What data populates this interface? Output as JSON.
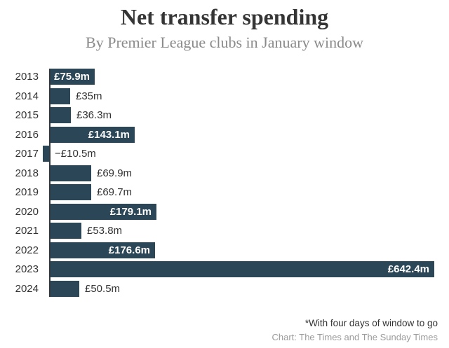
{
  "header": {
    "title": "Net transfer spending",
    "subtitle": "By Premier League clubs in January window"
  },
  "footer": {
    "footnote": "*With four days of window to go",
    "source": "Chart: The Times and The Sunday Times"
  },
  "colors": {
    "bar": "#2b4656",
    "axis": "#323a40",
    "label_inside": "#ffffff",
    "label_outside": "#333333",
    "title": "#353535",
    "subtitle": "#8a8a8a",
    "source": "#9b9b9b"
  },
  "chart_data": {
    "type": "bar",
    "orientation": "horizontal",
    "title": "Net transfer spending",
    "subtitle": "By Premier League clubs in January window",
    "xlabel": "",
    "ylabel": "",
    "categories": [
      "2013",
      "2014",
      "2015",
      "2016",
      "2017",
      "2018",
      "2019",
      "2020",
      "2021",
      "2022",
      "2023",
      "2024"
    ],
    "values": [
      75.9,
      35,
      36.3,
      143.1,
      -10.5,
      69.9,
      69.7,
      179.1,
      53.8,
      176.6,
      642.4,
      50.5
    ],
    "value_labels": [
      "£75.9m",
      "£35m",
      "£36.3m",
      "£143.1m",
      "−£10.5m",
      "£69.9m",
      "£69.7m",
      "£179.1m",
      "£53.8m",
      "£176.6m",
      "£642.4m",
      "£50.5m"
    ],
    "unit": "£m",
    "xlim": [
      -10.5,
      642.4
    ],
    "grid": false,
    "legend": false,
    "rows": [
      {
        "year": "2013",
        "value": 75.9,
        "label": "£75.9m",
        "label_inside": true
      },
      {
        "year": "2014",
        "value": 35,
        "label": "£35m",
        "label_inside": false
      },
      {
        "year": "2015",
        "value": 36.3,
        "label": "£36.3m",
        "label_inside": false
      },
      {
        "year": "2016",
        "value": 143.1,
        "label": "£143.1m",
        "label_inside": true
      },
      {
        "year": "2017",
        "value": -10.5,
        "label": "−£10.5m",
        "label_inside": false
      },
      {
        "year": "2018",
        "value": 69.9,
        "label": "£69.9m",
        "label_inside": false
      },
      {
        "year": "2019",
        "value": 69.7,
        "label": "£69.7m",
        "label_inside": false
      },
      {
        "year": "2020",
        "value": 179.1,
        "label": "£179.1m",
        "label_inside": true
      },
      {
        "year": "2021",
        "value": 53.8,
        "label": "£53.8m",
        "label_inside": false
      },
      {
        "year": "2022",
        "value": 176.6,
        "label": "£176.6m",
        "label_inside": true
      },
      {
        "year": "2023",
        "value": 642.4,
        "label": "£642.4m",
        "label_inside": true
      },
      {
        "year": "2024",
        "value": 50.5,
        "label": "£50.5m",
        "label_inside": false
      }
    ]
  }
}
